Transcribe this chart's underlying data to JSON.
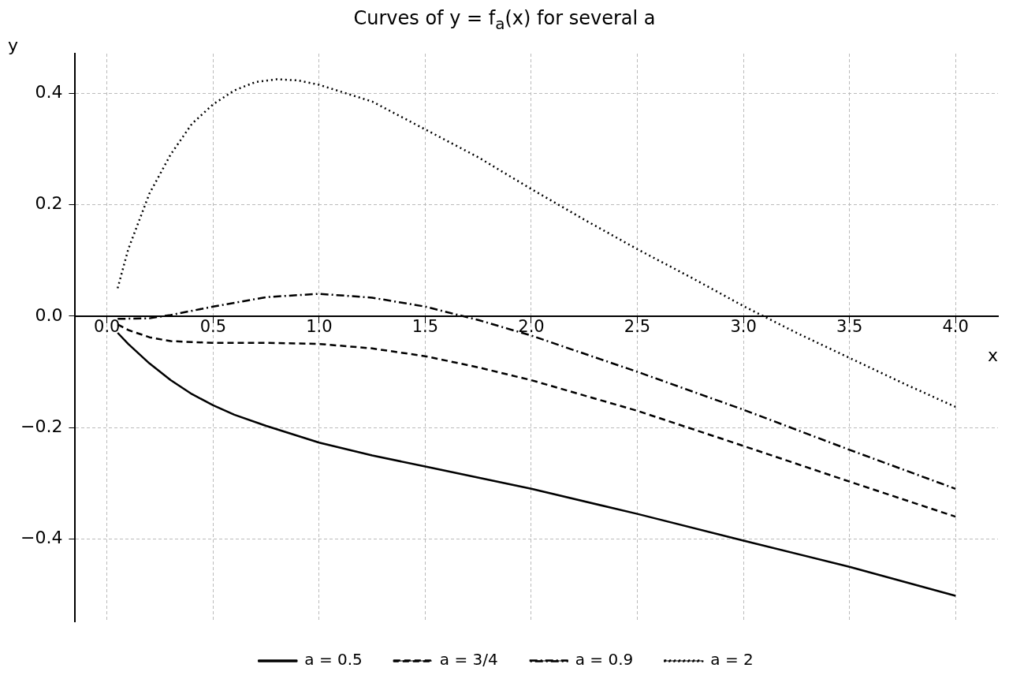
{
  "chart_data": {
    "type": "line",
    "title": "Curves of y = f$_{a}$(x) for several a",
    "xlabel": "x",
    "ylabel": "y",
    "xlim": [
      -0.15,
      4.2
    ],
    "ylim": [
      -0.548,
      0.471
    ],
    "xticks": [
      {
        "value": 0,
        "label": "0.0"
      },
      {
        "value": 0.5,
        "label": "0.5"
      },
      {
        "value": 1,
        "label": "1.0"
      },
      {
        "value": 1.5,
        "label": "1.5"
      },
      {
        "value": 2,
        "label": "2.0"
      },
      {
        "value": 2.5,
        "label": "2.5"
      },
      {
        "value": 3,
        "label": "3.0"
      },
      {
        "value": 3.5,
        "label": "3.5"
      },
      {
        "value": 4,
        "label": "4.0"
      }
    ],
    "yticks": [
      {
        "value": -0.4,
        "label": "−0.4"
      },
      {
        "value": -0.2,
        "label": "−0.2"
      },
      {
        "value": 0,
        "label": "0.0"
      },
      {
        "value": 0.2,
        "label": "0.2"
      },
      {
        "value": 0.4,
        "label": "0.4"
      }
    ],
    "grid": true,
    "legend": "bottom",
    "marker": "none",
    "series": [
      {
        "name": "a = 0.5",
        "color": "#000000",
        "line_style": "solid",
        "x": [
          0.05,
          0.1,
          0.2,
          0.3,
          0.4,
          0.5,
          0.6,
          0.75,
          1.0,
          1.25,
          1.5,
          2.0,
          2.5,
          3.0,
          3.5,
          4.0
        ],
        "values": [
          -0.03,
          -0.05,
          -0.085,
          -0.115,
          -0.14,
          -0.16,
          -0.177,
          -0.197,
          -0.227,
          -0.25,
          -0.27,
          -0.31,
          -0.355,
          -0.403,
          -0.45,
          -0.502
        ]
      },
      {
        "name": "a = 3/4",
        "color": "#000000",
        "line_style": "dashed",
        "x": [
          0.05,
          0.1,
          0.2,
          0.3,
          0.5,
          0.75,
          1.0,
          1.25,
          1.5,
          1.75,
          2.0,
          2.5,
          3.0,
          3.5,
          4.0
        ],
        "values": [
          -0.015,
          -0.025,
          -0.038,
          -0.045,
          -0.048,
          -0.048,
          -0.05,
          -0.058,
          -0.072,
          -0.092,
          -0.115,
          -0.17,
          -0.233,
          -0.297,
          -0.36
        ]
      },
      {
        "name": "a = 0.9",
        "color": "#000000",
        "line_style": "dashdot",
        "x": [
          0.05,
          0.2,
          0.3,
          0.5,
          0.75,
          1.0,
          1.25,
          1.5,
          1.75,
          2.0,
          2.5,
          3.0,
          3.5,
          4.0
        ],
        "values": [
          -0.005,
          -0.004,
          0.002,
          0.017,
          0.034,
          0.04,
          0.033,
          0.017,
          -0.007,
          -0.035,
          -0.1,
          -0.168,
          -0.24,
          -0.31
        ]
      },
      {
        "name": "a = 2",
        "color": "#000000",
        "line_style": "dotted",
        "x": [
          0.05,
          0.1,
          0.2,
          0.3,
          0.4,
          0.5,
          0.6,
          0.7,
          0.8,
          0.9,
          1.0,
          1.25,
          1.5,
          1.75,
          2.0,
          2.25,
          2.5,
          2.75,
          3.0,
          3.25,
          3.5,
          3.75,
          4.0
        ],
        "values": [
          0.05,
          0.12,
          0.22,
          0.29,
          0.345,
          0.38,
          0.405,
          0.42,
          0.425,
          0.423,
          0.415,
          0.385,
          0.335,
          0.285,
          0.228,
          0.173,
          0.12,
          0.07,
          0.018,
          -0.03,
          -0.075,
          -0.12,
          -0.163
        ]
      }
    ]
  }
}
